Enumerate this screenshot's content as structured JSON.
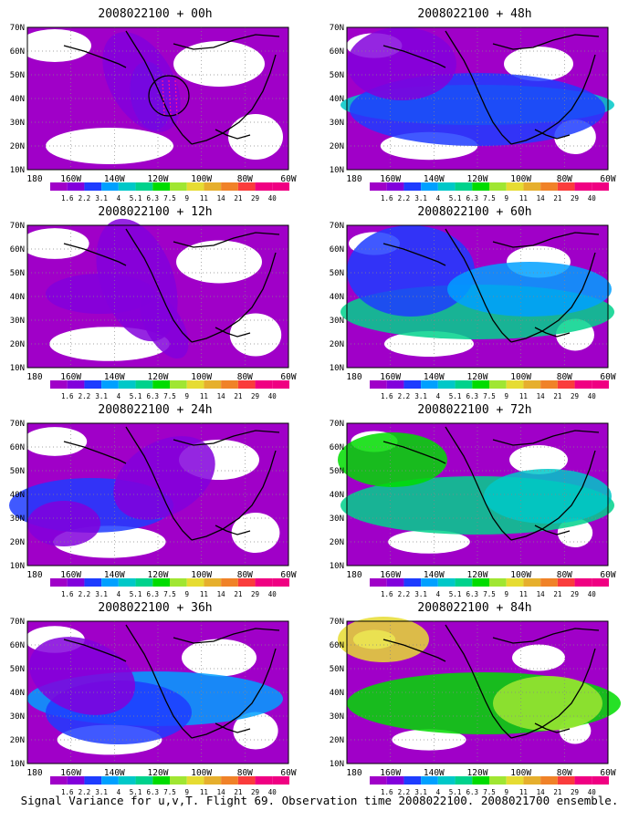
{
  "caption": "Signal Variance for u,v,T. Flight 69. Observation time 2008022100. 2008021700 ensemble.",
  "colors": {
    "scale": [
      "#a000c8",
      "#8200dc",
      "#1e3cff",
      "#00a0ff",
      "#00c8c8",
      "#00d28c",
      "#00dc00",
      "#a0e632",
      "#e6dc32",
      "#e6af2d",
      "#f08228",
      "#fa3c3c",
      "#f00082"
    ]
  },
  "chart_data": [
    {
      "type": "heatmap",
      "title": "2008022100 + 00h",
      "lead_hours": 0,
      "xticks": [
        "180",
        "160W",
        "140W",
        "120W",
        "100W",
        "80W",
        "60W"
      ],
      "yticks": [
        "70N",
        "60N",
        "50N",
        "40N",
        "30N",
        "20N",
        "10N"
      ],
      "colorbar": [
        "1.6",
        "2.2",
        "3.1",
        "4",
        "5.1",
        "6.3",
        "7.5",
        "9",
        "11",
        "14",
        "21",
        "29",
        "40"
      ]
    },
    {
      "type": "heatmap",
      "title": "2008022100 + 12h",
      "lead_hours": 12,
      "xticks": [
        "180",
        "160W",
        "140W",
        "120W",
        "100W",
        "80W",
        "60W"
      ],
      "yticks": [
        "70N",
        "60N",
        "50N",
        "40N",
        "30N",
        "20N",
        "10N"
      ],
      "colorbar": [
        "1.6",
        "2.2",
        "3.1",
        "4",
        "5.1",
        "6.3",
        "7.5",
        "9",
        "11",
        "14",
        "21",
        "29",
        "40"
      ]
    },
    {
      "type": "heatmap",
      "title": "2008022100 + 24h",
      "lead_hours": 24,
      "xticks": [
        "180",
        "160W",
        "140W",
        "120W",
        "100W",
        "80W",
        "60W"
      ],
      "yticks": [
        "70N",
        "60N",
        "50N",
        "40N",
        "30N",
        "20N",
        "10N"
      ],
      "colorbar": [
        "1.6",
        "2.2",
        "3.1",
        "4",
        "5.1",
        "6.3",
        "7.5",
        "9",
        "11",
        "14",
        "21",
        "29",
        "40"
      ]
    },
    {
      "type": "heatmap",
      "title": "2008022100 + 36h",
      "lead_hours": 36,
      "xticks": [
        "180",
        "160W",
        "140W",
        "120W",
        "100W",
        "80W",
        "60W"
      ],
      "yticks": [
        "70N",
        "60N",
        "50N",
        "40N",
        "30N",
        "20N",
        "10N"
      ],
      "colorbar": [
        "1.6",
        "2.2",
        "3.1",
        "4",
        "5.1",
        "6.3",
        "7.5",
        "9",
        "11",
        "14",
        "21",
        "29",
        "40"
      ]
    },
    {
      "type": "heatmap",
      "title": "2008022100 + 48h",
      "lead_hours": 48,
      "xticks": [
        "180",
        "160W",
        "140W",
        "120W",
        "100W",
        "80W",
        "60W"
      ],
      "yticks": [
        "70N",
        "60N",
        "50N",
        "40N",
        "30N",
        "20N",
        "10N"
      ],
      "colorbar": [
        "1.6",
        "2.2",
        "3.1",
        "4",
        "5.1",
        "6.3",
        "7.5",
        "9",
        "11",
        "14",
        "21",
        "29",
        "40"
      ]
    },
    {
      "type": "heatmap",
      "title": "2008022100 + 60h",
      "lead_hours": 60,
      "xticks": [
        "180",
        "160W",
        "140W",
        "120W",
        "100W",
        "80W",
        "60W"
      ],
      "yticks": [
        "70N",
        "60N",
        "50N",
        "40N",
        "30N",
        "20N",
        "10N"
      ],
      "colorbar": [
        "1.6",
        "2.2",
        "3.1",
        "4",
        "5.1",
        "6.3",
        "7.5",
        "9",
        "11",
        "14",
        "21",
        "29",
        "40"
      ]
    },
    {
      "type": "heatmap",
      "title": "2008022100 + 72h",
      "lead_hours": 72,
      "xticks": [
        "180",
        "160W",
        "140W",
        "120W",
        "100W",
        "80W",
        "60W"
      ],
      "yticks": [
        "70N",
        "60N",
        "50N",
        "40N",
        "30N",
        "20N",
        "10N"
      ],
      "colorbar": [
        "1.6",
        "2.2",
        "3.1",
        "4",
        "5.1",
        "6.3",
        "7.5",
        "9",
        "11",
        "14",
        "21",
        "29",
        "40"
      ]
    },
    {
      "type": "heatmap",
      "title": "2008022100 + 84h",
      "lead_hours": 84,
      "xticks": [
        "180",
        "160W",
        "140W",
        "120W",
        "100W",
        "80W",
        "60W"
      ],
      "yticks": [
        "70N",
        "60N",
        "50N",
        "40N",
        "30N",
        "20N",
        "10N"
      ],
      "colorbar": [
        "1.6",
        "2.2",
        "3.1",
        "4",
        "5.1",
        "6.3",
        "7.5",
        "9",
        "11",
        "14",
        "21",
        "29",
        "40"
      ]
    }
  ]
}
